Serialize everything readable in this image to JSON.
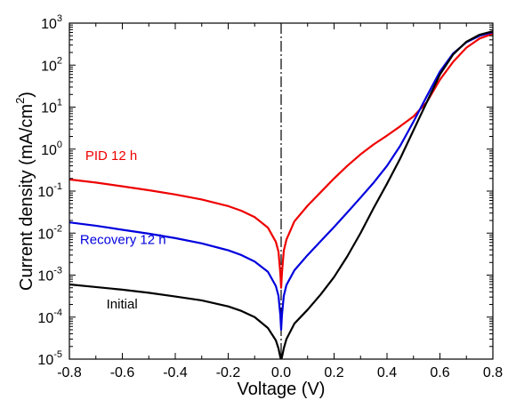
{
  "chart_data": {
    "type": "line",
    "xlabel": "Voltage (V)",
    "ylabel": "Current density (mA/cm",
    "ylabel_sup": "2",
    "ylabel_close": ")",
    "xlim": [
      -0.8,
      0.8
    ],
    "ylim_log10": [
      -5,
      3
    ],
    "yscale": "log",
    "grid": false,
    "x_ticks": [
      "-0.8",
      "-0.6",
      "-0.4",
      "-0.2",
      "0.0",
      "0.2",
      "0.4",
      "0.6",
      "0.8"
    ],
    "y_ticks": [
      {
        "base": "10",
        "exp": "-5"
      },
      {
        "base": "10",
        "exp": "-4"
      },
      {
        "base": "10",
        "exp": "-3"
      },
      {
        "base": "10",
        "exp": "-2"
      },
      {
        "base": "10",
        "exp": "-1"
      },
      {
        "base": "10",
        "exp": "0"
      },
      {
        "base": "10",
        "exp": "1"
      },
      {
        "base": "10",
        "exp": "2"
      },
      {
        "base": "10",
        "exp": "3"
      }
    ],
    "reference_line": {
      "x": 0.0,
      "style": "dash-dot",
      "color": "#000000"
    },
    "series": [
      {
        "name": "PID 12 h",
        "color": "#ee0000",
        "x": [
          -0.8,
          -0.7,
          -0.6,
          -0.5,
          -0.4,
          -0.3,
          -0.2,
          -0.15,
          -0.1,
          -0.05,
          -0.02,
          -0.01,
          -0.003,
          0.0,
          0.003,
          0.01,
          0.02,
          0.05,
          0.1,
          0.15,
          0.2,
          0.25,
          0.3,
          0.35,
          0.4,
          0.45,
          0.5,
          0.55,
          0.6,
          0.65,
          0.7,
          0.75,
          0.8
        ],
        "y": [
          0.19,
          0.16,
          0.13,
          0.105,
          0.083,
          0.063,
          0.044,
          0.034,
          0.024,
          0.0135,
          0.0062,
          0.0036,
          0.0011,
          0.0005,
          0.0011,
          0.0038,
          0.007,
          0.019,
          0.045,
          0.095,
          0.2,
          0.4,
          0.75,
          1.3,
          2.1,
          3.5,
          6.0,
          13.0,
          45.0,
          120.0,
          260.0,
          430.0,
          560.0
        ]
      },
      {
        "name": "Recovery 12 h",
        "color": "#0000dd",
        "x": [
          -0.8,
          -0.7,
          -0.6,
          -0.5,
          -0.4,
          -0.3,
          -0.2,
          -0.15,
          -0.1,
          -0.05,
          -0.02,
          -0.01,
          -0.003,
          0.0,
          0.003,
          0.01,
          0.02,
          0.05,
          0.1,
          0.15,
          0.2,
          0.25,
          0.3,
          0.35,
          0.4,
          0.45,
          0.5,
          0.55,
          0.6,
          0.65,
          0.7,
          0.75,
          0.8
        ],
        "y": [
          0.018,
          0.015,
          0.012,
          0.0097,
          0.0076,
          0.0057,
          0.0039,
          0.003,
          0.0021,
          0.0012,
          0.00055,
          0.00032,
          0.00011,
          5e-05,
          0.00011,
          0.00032,
          0.00058,
          0.0013,
          0.003,
          0.0065,
          0.014,
          0.031,
          0.07,
          0.16,
          0.4,
          1.2,
          4.5,
          18.0,
          70.0,
          190.0,
          350.0,
          500.0,
          610.0
        ]
      },
      {
        "name": "Initial",
        "color": "#000000",
        "x": [
          -0.8,
          -0.7,
          -0.6,
          -0.5,
          -0.4,
          -0.3,
          -0.2,
          -0.15,
          -0.1,
          -0.05,
          -0.02,
          -0.01,
          -0.003,
          0.0,
          0.003,
          0.01,
          0.02,
          0.05,
          0.1,
          0.15,
          0.2,
          0.25,
          0.3,
          0.35,
          0.4,
          0.45,
          0.5,
          0.55,
          0.6,
          0.65,
          0.7,
          0.75,
          0.8
        ],
        "y": [
          0.0006,
          0.00052,
          0.00045,
          0.00038,
          0.00031,
          0.00025,
          0.00018,
          0.00014,
          0.0001,
          5.5e-05,
          2.8e-05,
          1.8e-05,
          1.1e-05,
          1e-05,
          1.1e-05,
          1.8e-05,
          3e-05,
          7e-05,
          0.00015,
          0.00035,
          0.0009,
          0.0028,
          0.01,
          0.04,
          0.15,
          0.6,
          2.8,
          13.0,
          60.0,
          180.0,
          360.0,
          530.0,
          640.0
        ]
      }
    ]
  }
}
